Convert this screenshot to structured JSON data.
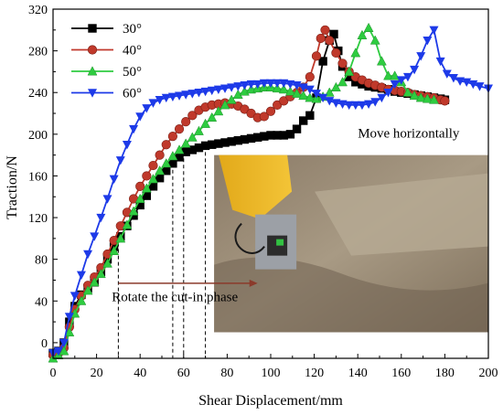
{
  "chart_data": {
    "type": "line",
    "xlabel": "Shear Displacement/mm",
    "ylabel": "Traction/N",
    "xlim": [
      0,
      200
    ],
    "ylim": [
      -15,
      320
    ],
    "xticks": [
      "0",
      "20",
      "40",
      "60",
      "80",
      "100",
      "120",
      "140",
      "160",
      "180",
      "200"
    ],
    "yticks": [
      "0",
      "40",
      "80",
      "120",
      "160",
      "200",
      "240",
      "280",
      "320"
    ],
    "xtick_values": [
      0,
      20,
      40,
      60,
      80,
      100,
      120,
      140,
      160,
      180,
      200
    ],
    "ytick_values": [
      0,
      40,
      80,
      120,
      160,
      200,
      240,
      280,
      320
    ],
    "grid": false,
    "legend_position": "top-left",
    "series": [
      {
        "name": "30°",
        "color": "#000000",
        "marker": "square",
        "x": [
          0,
          2.5,
          5,
          7.5,
          10,
          13,
          16,
          19,
          22,
          25,
          28,
          31,
          34,
          37,
          40,
          43,
          46,
          49,
          52,
          55,
          58,
          61,
          64,
          67,
          70,
          73,
          76,
          79,
          82,
          85,
          88,
          91,
          94,
          97,
          100,
          103,
          106,
          109,
          112,
          115,
          118,
          121,
          124,
          127,
          129,
          131,
          133,
          136,
          139,
          142,
          145,
          148,
          151,
          154,
          157,
          160,
          163,
          166,
          169,
          172,
          175,
          178,
          180
        ],
        "y": [
          -10,
          -8,
          0,
          20,
          35,
          46,
          52,
          58,
          68,
          80,
          92,
          102,
          112,
          122,
          132,
          141,
          150,
          158,
          165,
          172,
          178,
          183,
          185,
          187,
          189,
          190,
          191,
          192,
          193,
          194,
          195,
          196,
          197,
          198,
          199,
          199,
          199,
          200,
          205,
          213,
          218,
          235,
          270,
          290,
          296,
          280,
          265,
          255,
          250,
          248,
          246,
          245,
          244,
          243,
          241,
          240,
          239,
          238,
          237,
          236,
          235,
          234,
          233
        ]
      },
      {
        "name": "40°",
        "color": "#c0392b",
        "marker": "circle",
        "x": [
          0,
          2.5,
          5,
          7.5,
          10,
          13,
          16,
          19,
          22,
          25,
          28,
          31,
          34,
          37,
          40,
          43,
          46,
          49,
          52,
          55,
          58,
          61,
          64,
          67,
          70,
          73,
          76,
          79,
          82,
          85,
          88,
          91,
          94,
          97,
          100,
          103,
          106,
          109,
          112,
          115,
          118,
          121,
          123,
          125,
          127,
          130,
          133,
          136,
          139,
          142,
          145,
          148,
          151,
          154,
          157,
          160,
          163,
          166,
          169,
          172,
          175,
          178,
          180
        ],
        "y": [
          -12,
          -10,
          -5,
          15,
          32,
          45,
          55,
          63,
          72,
          85,
          98,
          112,
          125,
          138,
          150,
          160,
          170,
          180,
          190,
          198,
          205,
          212,
          218,
          223,
          226,
          228,
          229,
          230,
          229,
          227,
          224,
          220,
          216,
          217,
          222,
          228,
          232,
          236,
          240,
          245,
          255,
          275,
          292,
          300,
          290,
          278,
          268,
          260,
          255,
          252,
          249,
          247,
          245,
          243,
          242,
          241,
          240,
          238,
          237,
          236,
          235,
          233,
          232
        ]
      },
      {
        "name": "50°",
        "color": "#2ecc40",
        "marker": "triangle-up",
        "x": [
          0,
          2.5,
          5,
          7.5,
          10,
          13,
          16,
          19,
          22,
          25,
          28,
          31,
          34,
          37,
          40,
          43,
          46,
          49,
          52,
          55,
          58,
          61,
          64,
          67,
          70,
          73,
          76,
          79,
          82,
          85,
          88,
          91,
          94,
          97,
          100,
          103,
          106,
          109,
          112,
          115,
          118,
          121,
          124,
          127,
          130,
          133,
          136,
          139,
          142,
          145,
          148,
          151,
          154,
          157,
          160,
          163,
          166,
          169,
          172,
          175
        ],
        "y": [
          -15,
          -12,
          -8,
          10,
          28,
          40,
          50,
          58,
          66,
          76,
          88,
          100,
          113,
          126,
          138,
          148,
          157,
          165,
          172,
          179,
          185,
          191,
          197,
          203,
          210,
          216,
          222,
          228,
          233,
          238,
          241,
          243,
          244,
          245,
          245,
          244,
          243,
          241,
          239,
          237,
          235,
          234,
          236,
          240,
          245,
          250,
          260,
          278,
          295,
          302,
          290,
          270,
          256,
          256,
          250,
          240,
          237,
          235,
          234,
          233
        ]
      },
      {
        "name": "60°",
        "color": "#1d3ae8",
        "marker": "triangle-down",
        "x": [
          0,
          2.5,
          5,
          7.5,
          10,
          13,
          16,
          19,
          22,
          25,
          28,
          31,
          34,
          37,
          40,
          43,
          46,
          49,
          52,
          55,
          58,
          61,
          64,
          67,
          70,
          73,
          76,
          79,
          82,
          85,
          88,
          91,
          94,
          97,
          100,
          103,
          106,
          109,
          112,
          115,
          118,
          121,
          124,
          127,
          130,
          133,
          136,
          139,
          142,
          145,
          148,
          151,
          154,
          157,
          160,
          163,
          166,
          169,
          172,
          175,
          178,
          181,
          184,
          187,
          190,
          193,
          196,
          200
        ],
        "y": [
          -10,
          -8,
          0,
          25,
          45,
          65,
          85,
          102,
          120,
          138,
          157,
          175,
          190,
          205,
          217,
          225,
          230,
          233,
          235,
          236,
          237,
          238,
          239,
          240,
          241,
          242,
          243,
          244,
          245,
          246,
          247,
          248,
          248,
          249,
          249,
          249,
          249,
          248,
          247,
          245,
          243,
          239,
          235,
          232,
          230,
          229,
          228,
          228,
          228,
          229,
          231,
          235,
          240,
          248,
          252,
          255,
          262,
          275,
          290,
          300,
          270,
          258,
          254,
          251,
          250,
          248,
          246,
          244
        ]
      }
    ],
    "annotations": [
      {
        "text": "Move horizontally",
        "x": 140,
        "y": 197
      },
      {
        "text": "Rotate the cut-in phase",
        "x": 27,
        "y": 40
      }
    ],
    "guide_lines_x": [
      30,
      55,
      60,
      70
    ],
    "arrow": {
      "from_x": 30,
      "to_x": 94,
      "y": 57,
      "color": "#8b3a2b"
    },
    "photo": {
      "label": "photo-inset",
      "x_range": [
        74,
        200
      ],
      "y_range": [
        10,
        180
      ]
    }
  }
}
